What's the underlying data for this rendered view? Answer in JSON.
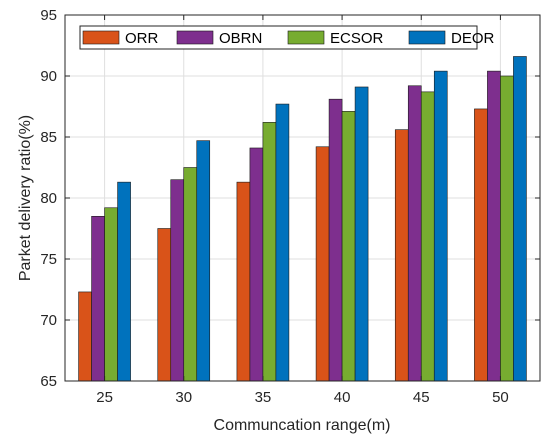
{
  "chart_data": {
    "type": "bar",
    "title": "",
    "xlabel": "Communcation range(m)",
    "ylabel": "Parket delivery ratio(%)",
    "categories": [
      "25",
      "30",
      "35",
      "40",
      "45",
      "50"
    ],
    "ylim": [
      65,
      95
    ],
    "yticks": [
      "65",
      "70",
      "75",
      "80",
      "85",
      "90",
      "95"
    ],
    "grid": true,
    "legend_position": "top",
    "series": [
      {
        "name": "ORR",
        "color": "#D95319",
        "values": [
          72.3,
          77.5,
          81.3,
          84.2,
          85.6,
          87.3
        ]
      },
      {
        "name": "OBRN",
        "color": "#7E2F8E",
        "values": [
          78.5,
          81.5,
          84.1,
          88.1,
          89.2,
          90.4
        ]
      },
      {
        "name": "ECSOR",
        "color": "#77AC30",
        "values": [
          79.2,
          82.5,
          86.2,
          87.1,
          88.7,
          90.0
        ]
      },
      {
        "name": "DEOR",
        "color": "#0072BD",
        "values": [
          81.3,
          84.7,
          87.7,
          89.1,
          90.4,
          91.6
        ]
      }
    ]
  }
}
